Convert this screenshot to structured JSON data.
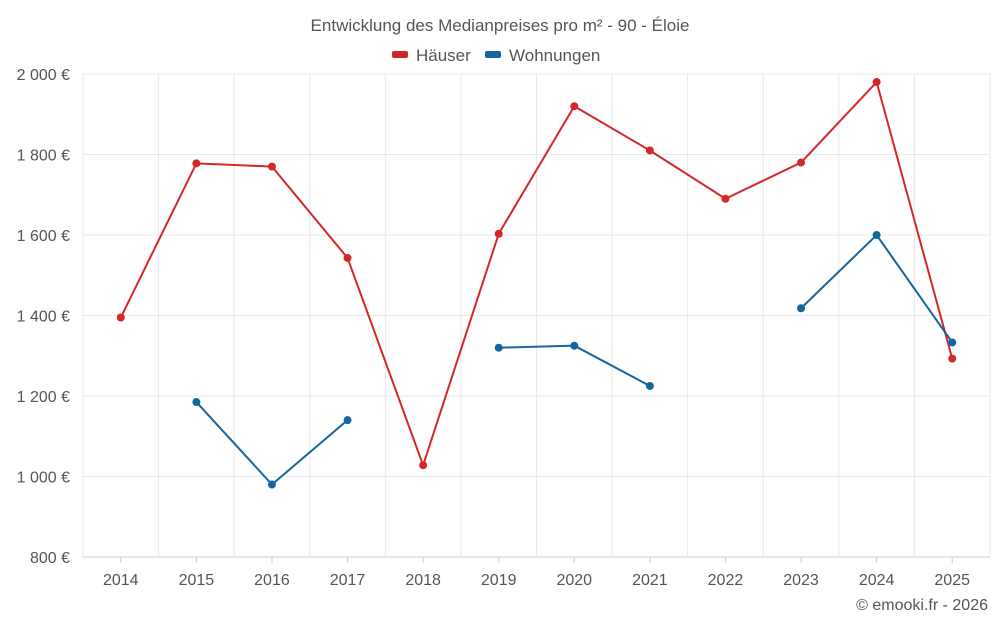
{
  "chart_data": {
    "type": "line",
    "title": "Entwicklung des Medianpreises pro m² - 90 - Éloie",
    "categories": [
      "2014",
      "2015",
      "2016",
      "2017",
      "2018",
      "2019",
      "2020",
      "2021",
      "2022",
      "2023",
      "2024",
      "2025"
    ],
    "series": [
      {
        "name": "Häuser",
        "color": "#d62728",
        "values": [
          1395,
          1778,
          1770,
          1543,
          1028,
          1603,
          1920,
          1810,
          1690,
          1780,
          1980,
          1293
        ]
      },
      {
        "name": "Wohnungen",
        "color": "#1565a0",
        "values": [
          null,
          1185,
          980,
          1140,
          null,
          1320,
          1325,
          1225,
          null,
          1418,
          1600,
          1333
        ]
      }
    ],
    "yticks": [
      800,
      1000,
      1200,
      1400,
      1600,
      1800,
      2000
    ],
    "ytick_labels": [
      "800 €",
      "1 000 €",
      "1 200 €",
      "1 400 €",
      "1 600 €",
      "1 800 €",
      "2 000 €"
    ],
    "ylim": [
      800,
      2000
    ],
    "xlabel": "",
    "ylabel": "",
    "legend_position": "top-center",
    "grid": true
  },
  "credit": "© emooki.fr - 2026"
}
